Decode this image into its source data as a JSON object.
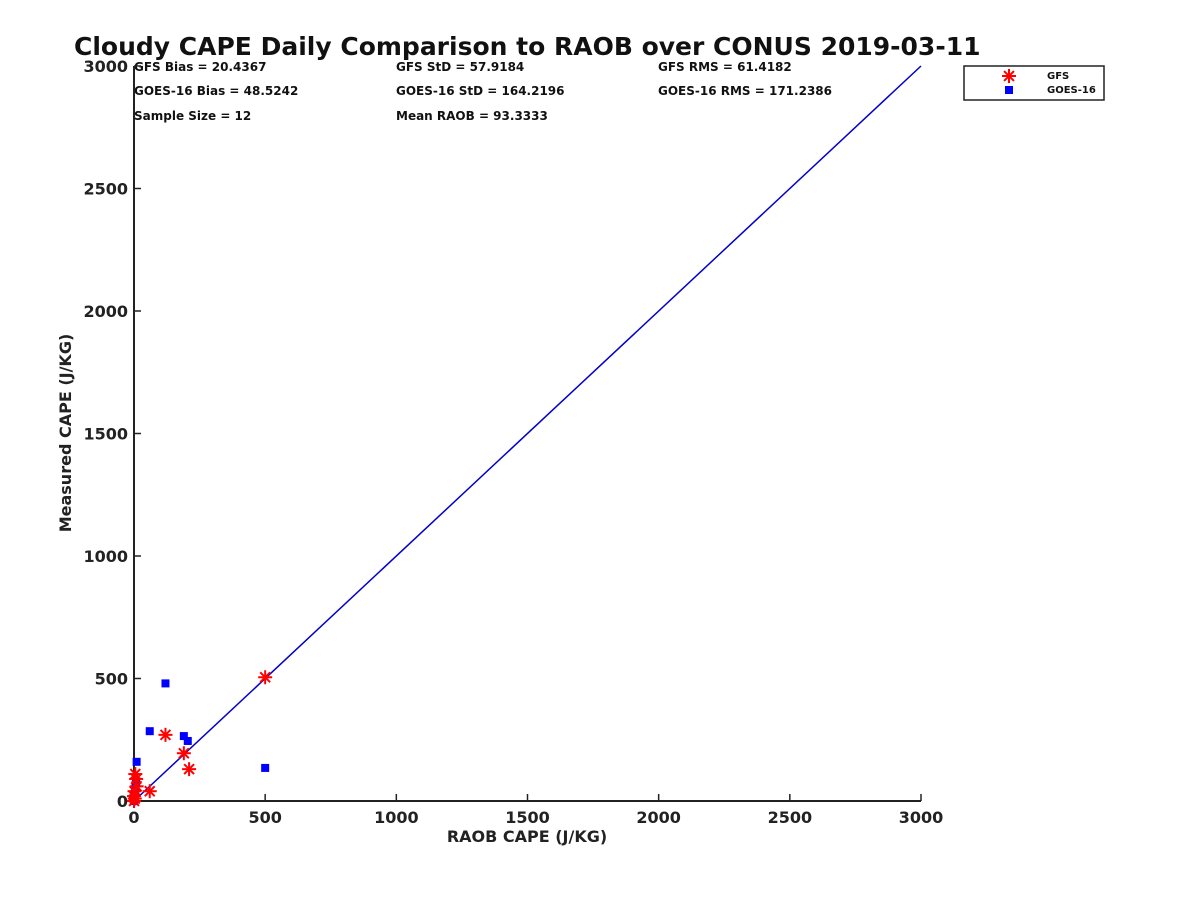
{
  "chart_data": {
    "type": "scatter",
    "title": "Cloudy CAPE Daily Comparison to RAOB over CONUS 2019-03-11",
    "xlabel": "RAOB CAPE (J/KG)",
    "ylabel": "Measured CAPE (J/KG)",
    "xlim": [
      0,
      3000
    ],
    "ylim": [
      0,
      3000
    ],
    "xticks": [
      0,
      500,
      1000,
      1500,
      2000,
      2500,
      3000
    ],
    "yticks": [
      0,
      500,
      1000,
      1500,
      2000,
      2500,
      3000
    ],
    "grid": false,
    "legend_position": "top-right",
    "stats": {
      "gfs_bias": "GFS Bias = 20.4367",
      "gfs_std": "GFS StD = 57.9184",
      "gfs_rms": "GFS RMS = 61.4182",
      "goes_bias": "GOES-16 Bias = 48.5242",
      "goes_std": "GOES-16 StD = 164.2196",
      "goes_rms": "GOES-16 RMS = 171.2386",
      "sample_size": "Sample Size = 12",
      "mean_raob": "Mean RAOB = 93.3333"
    },
    "reference_line": {
      "x": [
        0,
        3000
      ],
      "y": [
        0,
        3000
      ],
      "color": "#0000cc"
    },
    "series": [
      {
        "name": "GFS",
        "marker": "asterisk",
        "color": "#ff0000",
        "points": [
          [
            0,
            0
          ],
          [
            0,
            20
          ],
          [
            2,
            40
          ],
          [
            5,
            110
          ],
          [
            8,
            90
          ],
          [
            10,
            60
          ],
          [
            60,
            40
          ],
          [
            120,
            270
          ],
          [
            190,
            195
          ],
          [
            210,
            130
          ],
          [
            500,
            505
          ],
          [
            3,
            10
          ]
        ]
      },
      {
        "name": "GOES-16",
        "marker": "square",
        "color": "#0000ff",
        "points": [
          [
            0,
            0
          ],
          [
            2,
            15
          ],
          [
            5,
            50
          ],
          [
            8,
            75
          ],
          [
            10,
            160
          ],
          [
            60,
            285
          ],
          [
            120,
            480
          ],
          [
            190,
            265
          ],
          [
            205,
            245
          ],
          [
            500,
            135
          ],
          [
            3,
            30
          ],
          [
            6,
            60
          ]
        ]
      }
    ]
  }
}
